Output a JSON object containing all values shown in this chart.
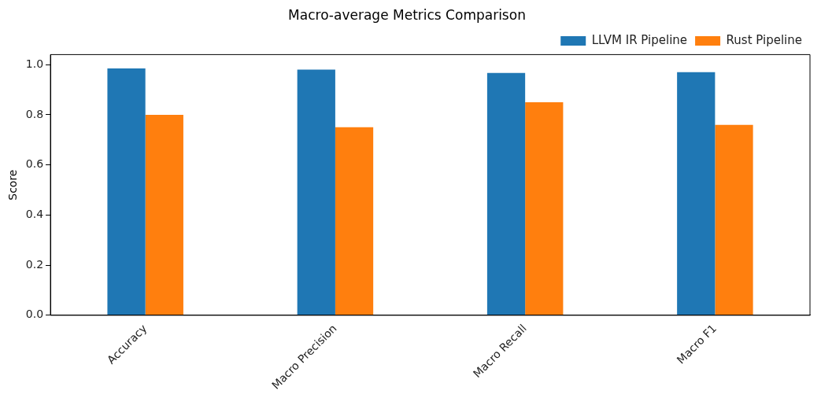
{
  "chart_data": {
    "type": "bar",
    "title": "Macro-average Metrics Comparison",
    "ylabel": "Score",
    "categories": [
      "Accuracy",
      "Macro Precision",
      "Macro Recall",
      "Macro F1"
    ],
    "series": [
      {
        "name": "LLVM IR Pipeline",
        "color": "#1f77b4",
        "values": [
          0.985,
          0.98,
          0.967,
          0.97
        ]
      },
      {
        "name": "Rust Pipeline",
        "color": "#ff7f0e",
        "values": [
          0.8,
          0.75,
          0.85,
          0.76
        ]
      }
    ],
    "ylim": [
      0,
      1.04
    ],
    "yticks": [
      {
        "value": 0,
        "label": "0.0"
      },
      0.2,
      0.4,
      0.6,
      0.8,
      {
        "value": 1,
        "label": "1.0"
      }
    ],
    "grid": false,
    "legend": "top right"
  }
}
